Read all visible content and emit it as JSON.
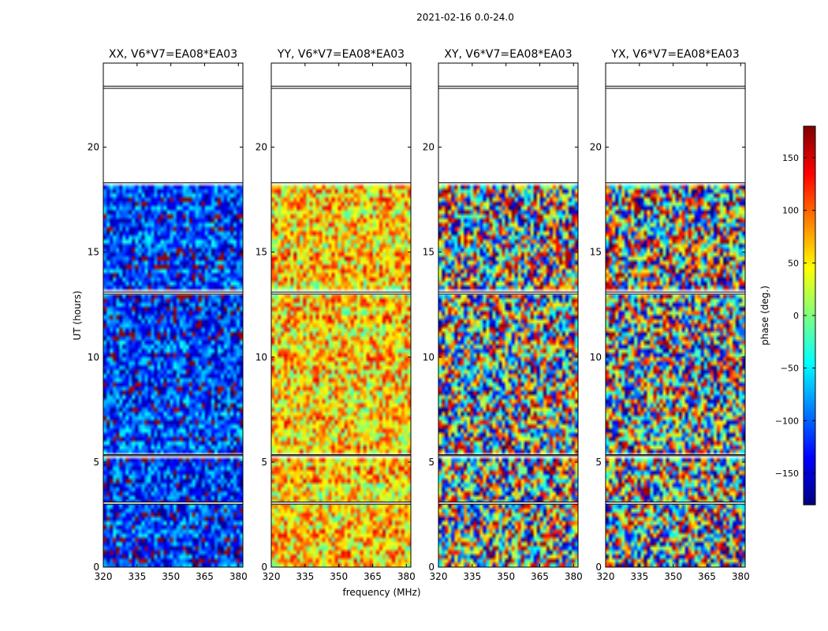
{
  "chart_data": {
    "type": "heatmap",
    "suptitle": "2021-02-16 0.0-24.0",
    "xlabel": "frequency (MHz)",
    "ylabel": "UT (hours)",
    "xlim": [
      320,
      382
    ],
    "ylim": [
      0,
      24
    ],
    "xticks": [
      320,
      335,
      350,
      365,
      380
    ],
    "yticks": [
      0,
      5,
      10,
      15,
      20
    ],
    "panels": [
      {
        "title": "XX, V6*V7=EA08*EA03",
        "mean_phase": -120,
        "spread": 70
      },
      {
        "title": "YY, V6*V7=EA08*EA03",
        "mean_phase": 60,
        "spread": 75
      },
      {
        "title": "XY, V6*V7=EA08*EA03",
        "mean_phase": 0,
        "spread": 180
      },
      {
        "title": "YX, V6*V7=EA08*EA03",
        "mean_phase": 0,
        "spread": 180
      }
    ],
    "flagged_ut_ranges": [
      [
        22.9,
        24.0
      ],
      [
        18.3,
        22.8
      ],
      [
        13.0,
        13.1
      ],
      [
        5.3,
        5.35
      ],
      [
        3.0,
        3.1
      ]
    ],
    "colorbar": {
      "label": "phase (deg.)",
      "range": [
        -180,
        180
      ],
      "ticks": [
        -150,
        -100,
        -50,
        0,
        50,
        100,
        150
      ],
      "tick_labels": [
        "−150",
        "−100",
        "−50",
        "0",
        "50",
        "100",
        "150"
      ],
      "colormap": [
        "#00007f",
        "#0000ff",
        "#007fff",
        "#00ffff",
        "#7fff7f",
        "#ffff00",
        "#ff7f00",
        "#ff0000",
        "#7f0000"
      ]
    }
  }
}
